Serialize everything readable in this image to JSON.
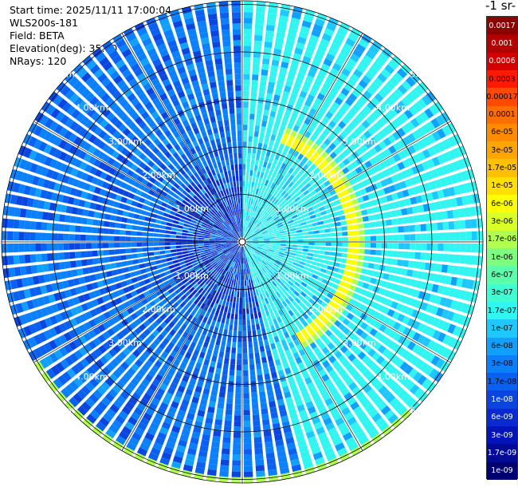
{
  "info": {
    "start_time": "Start time: 2025/11/11 17:00:04",
    "instrument": "WLS200s-181",
    "field": "Field: BETA",
    "elevation": "Elevation(deg): 35.00",
    "nrays": "NRays: 120"
  },
  "colorbar": {
    "title": "-1 sr-",
    "labels": [
      "0.0017",
      "0.001",
      "0.0006",
      "0.0003",
      "0.00017",
      "0.0001",
      "6e-05",
      "3e-05",
      "1.7e-05",
      "1e-05",
      "6e-06",
      "3e-06",
      "1.7e-06",
      "1e-06",
      "6e-07",
      "3e-07",
      "1.7e-07",
      "1e-07",
      "6e-08",
      "3e-08",
      "1.7e-08",
      "1e-08",
      "6e-09",
      "3e-09",
      "1.7e-09",
      "1e-09"
    ],
    "colors": [
      "#8c0000",
      "#b00000",
      "#d40000",
      "#ff1a00",
      "#ff4a00",
      "#ff6e00",
      "#ff8c00",
      "#ffa500",
      "#ffc000",
      "#ffe000",
      "#ffff00",
      "#d8ff28",
      "#b0ff50",
      "#7dff80",
      "#5cffaa",
      "#40ffd2",
      "#30f5f0",
      "#1ec8ff",
      "#12a0ff",
      "#0a80ff",
      "#0a60f0",
      "#0a45e0",
      "#0a2ad0",
      "#0014b8",
      "#000a96",
      "#000070"
    ]
  },
  "chart_data": {
    "type": "polar_ppi",
    "field": "BETA",
    "elevation_deg": 35.0,
    "n_rays": 120,
    "range_rings_km": [
      1.0,
      2.0,
      3.0,
      4.0,
      5.0
    ],
    "ring_labels": [
      "1.00km",
      "2.00km",
      "3.00km",
      "4.00km",
      "5.00km"
    ],
    "colorscale": "log",
    "color_range": [
      1e-09,
      0.0017
    ],
    "features": [
      {
        "description": "high backscatter arc east",
        "azimuth_deg": [
          20,
          150
        ],
        "range_km": 2.4,
        "value": 1.7e-05
      },
      {
        "description": "high backscatter arc south",
        "azimuth_deg": [
          135,
          240
        ],
        "range_km": 5.2,
        "value": 1.7e-05
      }
    ]
  }
}
